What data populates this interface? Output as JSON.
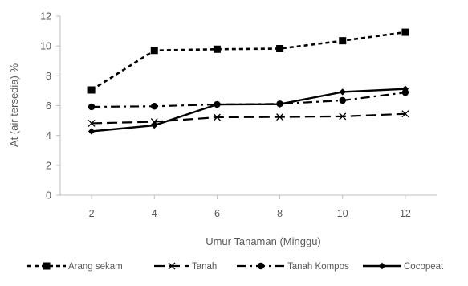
{
  "chart_data": {
    "type": "line",
    "xlabel": "Umur Tanaman (Minggu)",
    "ylabel": "At (air tersedia) %",
    "categories": [
      "2",
      "4",
      "6",
      "8",
      "10",
      "12"
    ],
    "ylim": [
      0,
      12
    ],
    "yticks": [
      "0",
      "2",
      "4",
      "6",
      "8",
      "10",
      "12"
    ],
    "grid": false,
    "legend_position": "bottom",
    "series": [
      {
        "name": "Arang sekam",
        "values": [
          7.05,
          9.7,
          9.78,
          9.82,
          10.35,
          10.92
        ],
        "marker": "square",
        "dash": "short-dash",
        "color": "#000000"
      },
      {
        "name": "Tanah",
        "values": [
          4.82,
          4.92,
          5.22,
          5.24,
          5.28,
          5.45
        ],
        "marker": "x",
        "dash": "long-dash",
        "color": "#000000"
      },
      {
        "name": "Tanah Kompos",
        "values": [
          5.92,
          5.96,
          6.08,
          6.12,
          6.35,
          6.88
        ],
        "marker": "circle",
        "dash": "dash-dot",
        "color": "#000000"
      },
      {
        "name": "Cocopeat",
        "values": [
          4.28,
          4.68,
          6.08,
          6.1,
          6.92,
          7.12
        ],
        "marker": "diamond",
        "dash": "solid",
        "color": "#000000"
      }
    ]
  }
}
